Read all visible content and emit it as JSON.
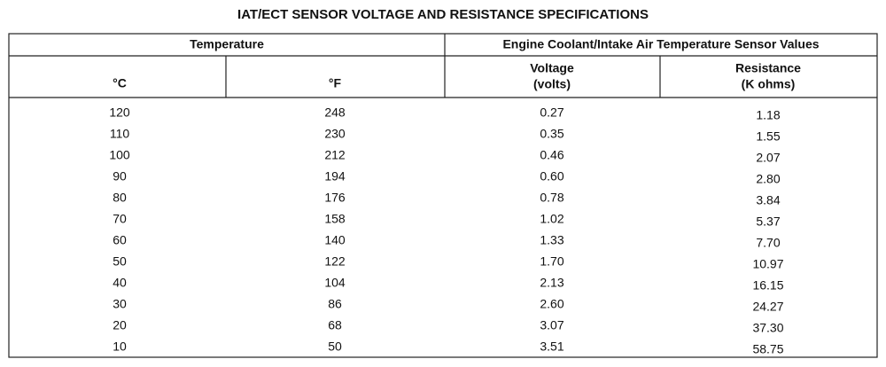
{
  "header": {
    "title": "IAT/ECT SENSOR VOLTAGE AND RESISTANCE SPECIFICATIONS"
  },
  "table": {
    "group_headers": [
      "Temperature",
      "Engine Coolant/Intake Air Temperature Sensor Values"
    ],
    "column_headers": [
      [
        "°C"
      ],
      [
        "°F"
      ],
      [
        "Voltage",
        "(volts)"
      ],
      [
        "Resistance",
        "(K ohms)"
      ]
    ],
    "rows": [
      [
        "120",
        "248",
        "0.27",
        "1.18"
      ],
      [
        "110",
        "230",
        "0.35",
        "1.55"
      ],
      [
        "100",
        "212",
        "0.46",
        "2.07"
      ],
      [
        "90",
        "194",
        "0.60",
        "2.80"
      ],
      [
        "80",
        "176",
        "0.78",
        "3.84"
      ],
      [
        "70",
        "158",
        "1.02",
        "5.37"
      ],
      [
        "60",
        "140",
        "1.33",
        "7.70"
      ],
      [
        "50",
        "122",
        "1.70",
        "10.97"
      ],
      [
        "40",
        "104",
        "2.13",
        "16.15"
      ],
      [
        "30",
        "86",
        "2.60",
        "24.27"
      ],
      [
        "20",
        "68",
        "3.07",
        "37.30"
      ],
      [
        "10",
        "50",
        "3.51",
        "58.75"
      ]
    ]
  }
}
